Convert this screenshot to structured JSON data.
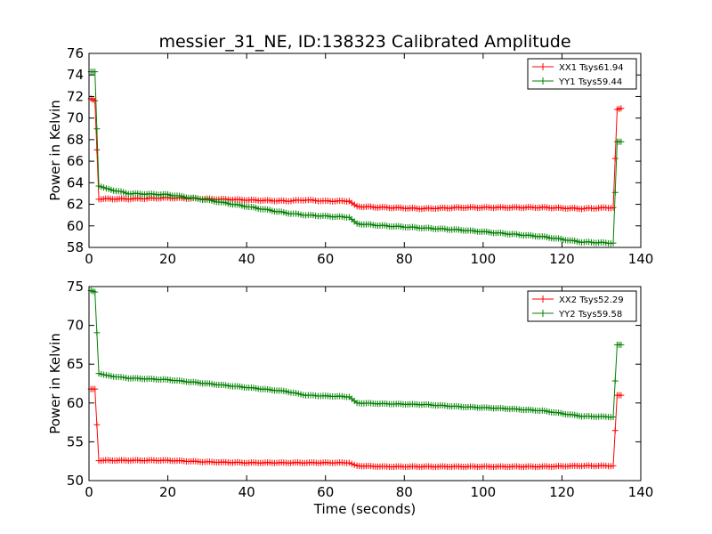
{
  "chart_data": [
    {
      "type": "line",
      "title": "messier_31_NE, ID:138323 Calibrated Amplitude",
      "xlabel": "",
      "ylabel": "Power in Kelvin",
      "xlim": [
        0,
        140
      ],
      "ylim": [
        58,
        76
      ],
      "xticks": [
        0,
        20,
        40,
        60,
        80,
        100,
        120,
        140
      ],
      "yticks": [
        58,
        60,
        62,
        64,
        66,
        68,
        70,
        72,
        74,
        76
      ],
      "grid": false,
      "legend_position": "top-right",
      "series": [
        {
          "name": "XX1 Tsys61.94",
          "color": "#ff0000",
          "points": [
            [
              0.5,
              71.8
            ],
            [
              1.5,
              71.6
            ],
            [
              2.5,
              62.5
            ],
            [
              10,
              62.5
            ],
            [
              20,
              62.6
            ],
            [
              30,
              62.5
            ],
            [
              40,
              62.4
            ],
            [
              50,
              62.3
            ],
            [
              55,
              62.4
            ],
            [
              60,
              62.3
            ],
            [
              66,
              62.3
            ],
            [
              68,
              61.8
            ],
            [
              75,
              61.7
            ],
            [
              85,
              61.6
            ],
            [
              95,
              61.7
            ],
            [
              105,
              61.7
            ],
            [
              115,
              61.7
            ],
            [
              125,
              61.6
            ],
            [
              133,
              61.7
            ],
            [
              134,
              70.8
            ],
            [
              135,
              70.9
            ]
          ]
        },
        {
          "name": "YY1 Tsys59.44",
          "color": "#008000",
          "points": [
            [
              0.5,
              74.3
            ],
            [
              1.5,
              74.3
            ],
            [
              2.5,
              63.7
            ],
            [
              5,
              63.4
            ],
            [
              10,
              63.0
            ],
            [
              20,
              62.9
            ],
            [
              30,
              62.4
            ],
            [
              40,
              61.8
            ],
            [
              50,
              61.2
            ],
            [
              55,
              61.0
            ],
            [
              60,
              60.9
            ],
            [
              66,
              60.8
            ],
            [
              68,
              60.2
            ],
            [
              75,
              60.0
            ],
            [
              85,
              59.8
            ],
            [
              95,
              59.6
            ],
            [
              105,
              59.3
            ],
            [
              115,
              59.0
            ],
            [
              125,
              58.5
            ],
            [
              133,
              58.4
            ],
            [
              134,
              67.8
            ],
            [
              135,
              67.8
            ]
          ]
        }
      ]
    },
    {
      "type": "line",
      "title": "",
      "xlabel": "Time (seconds)",
      "ylabel": "Power in Kelvin",
      "xlim": [
        0,
        140
      ],
      "ylim": [
        50,
        75
      ],
      "xticks": [
        0,
        20,
        40,
        60,
        80,
        100,
        120,
        140
      ],
      "yticks": [
        50,
        55,
        60,
        65,
        70,
        75
      ],
      "grid": false,
      "legend_position": "top-right",
      "series": [
        {
          "name": "XX2 Tsys52.29",
          "color": "#ff0000",
          "points": [
            [
              0.5,
              61.8
            ],
            [
              1.5,
              61.8
            ],
            [
              2.5,
              52.6
            ],
            [
              10,
              52.6
            ],
            [
              20,
              52.6
            ],
            [
              30,
              52.4
            ],
            [
              40,
              52.3
            ],
            [
              50,
              52.3
            ],
            [
              60,
              52.3
            ],
            [
              66,
              52.3
            ],
            [
              68,
              51.9
            ],
            [
              75,
              51.8
            ],
            [
              85,
              51.8
            ],
            [
              95,
              51.8
            ],
            [
              105,
              51.8
            ],
            [
              115,
              51.8
            ],
            [
              125,
              51.9
            ],
            [
              133,
              51.9
            ],
            [
              134,
              61.0
            ],
            [
              135,
              61.0
            ]
          ]
        },
        {
          "name": "YY2 Tsys59.58",
          "color": "#008000",
          "points": [
            [
              0.5,
              74.5
            ],
            [
              1.5,
              74.3
            ],
            [
              2.5,
              63.8
            ],
            [
              5,
              63.5
            ],
            [
              10,
              63.2
            ],
            [
              20,
              63.0
            ],
            [
              30,
              62.5
            ],
            [
              40,
              62.0
            ],
            [
              50,
              61.5
            ],
            [
              55,
              61.0
            ],
            [
              60,
              60.9
            ],
            [
              66,
              60.8
            ],
            [
              68,
              60.0
            ],
            [
              75,
              59.9
            ],
            [
              85,
              59.8
            ],
            [
              95,
              59.5
            ],
            [
              105,
              59.3
            ],
            [
              115,
              59.0
            ],
            [
              125,
              58.3
            ],
            [
              133,
              58.2
            ],
            [
              134,
              67.5
            ],
            [
              135,
              67.5
            ]
          ]
        }
      ]
    }
  ]
}
